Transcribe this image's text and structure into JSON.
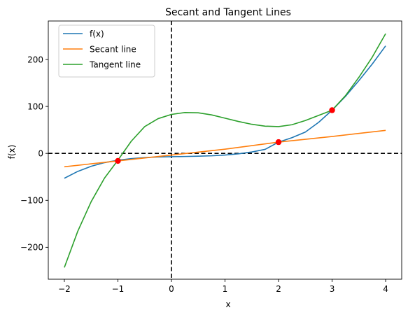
{
  "chart_data": {
    "type": "line",
    "title": "Secant and Tangent Lines",
    "xlabel": "x",
    "ylabel": "f(x)",
    "xlim": [
      -2.3,
      4.3
    ],
    "ylim": [
      -268,
      282
    ],
    "x_ticks": [
      -2,
      -1,
      0,
      1,
      2,
      3,
      4
    ],
    "y_ticks": [
      -200,
      -100,
      0,
      100,
      200
    ],
    "grid": false,
    "legend_position": "top-left",
    "reference_lines": [
      {
        "orientation": "horizontal",
        "value": 0,
        "style": "dashed",
        "color": "#000000"
      },
      {
        "orientation": "vertical",
        "value": 0,
        "style": "dashed",
        "color": "#000000"
      }
    ],
    "series": [
      {
        "name": "f(x)",
        "color": "#1f77b4",
        "x": [
          -2,
          -1.75,
          -1.5,
          -1.25,
          -1,
          -0.75,
          -0.5,
          -0.25,
          0,
          0.25,
          0.5,
          0.75,
          1,
          1.25,
          1.5,
          1.75,
          2,
          2.25,
          2.5,
          2.75,
          3,
          3.25,
          3.5,
          3.75,
          4
        ],
        "y": [
          -53,
          -38.4,
          -27.5,
          -19.7,
          -14.5,
          -11.1,
          -8.9,
          -7.6,
          -7,
          -6.6,
          -6,
          -5.1,
          -3.5,
          -0.9,
          3,
          8.6,
          24,
          33.4,
          45.4,
          66.3,
          92,
          121.5,
          155,
          190.3,
          229
        ]
      },
      {
        "name": "Secant line",
        "color": "#ff7f0e",
        "x": [
          -2,
          -1,
          0,
          1,
          2,
          3,
          4
        ],
        "y": [
          -28.5,
          -16,
          -3.5,
          9,
          24,
          36,
          49
        ]
      },
      {
        "name": "Tangent line",
        "color": "#2ca02c",
        "x": [
          -2,
          -1.75,
          -1.5,
          -1.25,
          -1,
          -0.75,
          -0.5,
          -0.25,
          0,
          0.25,
          0.5,
          0.75,
          1,
          1.25,
          1.5,
          1.75,
          2,
          2.25,
          2.5,
          2.75,
          3,
          3.25,
          3.5,
          3.75,
          4
        ],
        "y": [
          -243,
          -166,
          -103,
          -52.6,
          -14.5,
          26,
          57,
          74,
          83,
          87,
          86.5,
          82,
          75,
          68,
          62,
          58,
          57,
          61,
          70,
          81,
          92,
          123,
          162,
          205,
          255
        ]
      }
    ],
    "points": [
      {
        "x": -1,
        "y": -16,
        "color": "#ff0000"
      },
      {
        "x": 2,
        "y": 24,
        "color": "#ff0000"
      },
      {
        "x": 3,
        "y": 92,
        "color": "#ff0000"
      }
    ]
  }
}
